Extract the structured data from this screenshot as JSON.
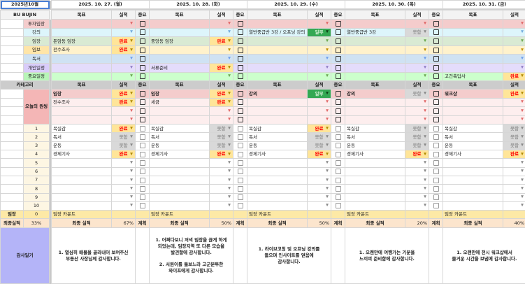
{
  "sheet": {
    "month_label": "2025년10월",
    "user_label": "BU BUJIN",
    "category_header": "카테고리",
    "onething_label": "오늘의 원씽",
    "imjang_label": "임장",
    "imjang_count": "0",
    "final_label": "최종실적",
    "final_total": "33%",
    "diary_label": "감사일기"
  },
  "headers": {
    "goal": "목표",
    "result": "실적",
    "important": "중요",
    "plan": "계획",
    "final": "최종 실적",
    "imjang_keyword": "임장 카운트"
  },
  "colors": {
    "done_bg": "#ffe599",
    "done_text": "#ff0000",
    "fail_bg": "#d9d9d9",
    "fail_text": "#9a9a9a",
    "partial_bg": "#34a853",
    "partial_text": "#d9f5d9",
    "diary_label_bg": "#b4b4f8"
  },
  "categories": [
    {
      "label": "투자임장",
      "bg": "#f4cccc",
      "label_bg": "#f4cccc",
      "arrow": "#e06666"
    },
    {
      "label": "강의",
      "bg": "#ddf5fb",
      "label_bg": "#ddf5fb",
      "arrow": "#6fa8dc"
    },
    {
      "label": "임장",
      "bg": "#d9ead3",
      "label_bg": "#d9ead3",
      "arrow": "#6aa84f"
    },
    {
      "label": "임보",
      "bg": "#fff2cc",
      "label_bg": "#ffe5a8",
      "arrow": "#bf9000"
    },
    {
      "label": "독서",
      "bg": "#cfe2f3",
      "label_bg": "#cfe2f3",
      "arrow": "#6d9eeb"
    },
    {
      "label": "개인일정",
      "bg": "#e4dcfb",
      "label_bg": "#d9ccfa",
      "arrow": "#8e7cc3"
    },
    {
      "label": "중요일정",
      "bg": "#ccffcc",
      "label_bg": "#b8f5b8",
      "arrow": "#6aa84f"
    }
  ],
  "routine_numbers": [
    "1",
    "2",
    "3",
    "4",
    "5",
    "6",
    "7",
    "8",
    "9",
    "10"
  ],
  "days": [
    {
      "date": "2025. 10. 27. (월)",
      "schedule": [
        {
          "goal": "",
          "result": ""
        },
        {
          "goal": "",
          "result": ""
        },
        {
          "goal": "돈암동 임장",
          "result": "완료"
        },
        {
          "goal": "전수조사",
          "result": "완료"
        },
        {
          "goal": "",
          "result": ""
        },
        {
          "goal": "",
          "result": ""
        },
        {
          "goal": "",
          "result": ""
        }
      ],
      "onething": [
        {
          "goal": "임장",
          "result": "완료"
        },
        {
          "goal": "전수조사",
          "result": "완료"
        },
        {
          "goal": "",
          "result": ""
        },
        {
          "goal": "",
          "result": ""
        }
      ],
      "routines": [
        {
          "goal": "목실감",
          "result": "완료"
        },
        {
          "goal": "독서",
          "result": "못함"
        },
        {
          "goal": "운동",
          "result": "못함"
        },
        {
          "goal": "경제기사",
          "result": "완료"
        },
        {
          "goal": "",
          "result": ""
        },
        {
          "goal": "",
          "result": ""
        },
        {
          "goal": "",
          "result": ""
        },
        {
          "goal": "",
          "result": ""
        },
        {
          "goal": "",
          "result": ""
        },
        {
          "goal": "",
          "result": ""
        }
      ],
      "final_pct": "67%",
      "diary": "1. 열심히 매물을 골라내어 보여주신\n부동산 사장님께 감사합니다."
    },
    {
      "date": "2025. 10. 28. (화)",
      "schedule": [
        {
          "goal": "",
          "result": ""
        },
        {
          "goal": "",
          "result": ""
        },
        {
          "goal": "중앙동 임장",
          "result": "완료"
        },
        {
          "goal": "",
          "result": ""
        },
        {
          "goal": "",
          "result": ""
        },
        {
          "goal": "서류준비",
          "result": "완료"
        },
        {
          "goal": "",
          "result": ""
        }
      ],
      "onething": [
        {
          "goal": "임장",
          "result": "완료"
        },
        {
          "goal": "세금",
          "result": "완료"
        },
        {
          "goal": "",
          "result": ""
        },
        {
          "goal": "",
          "result": ""
        }
      ],
      "routines": [
        {
          "goal": "목실감",
          "result": "못함"
        },
        {
          "goal": "독서",
          "result": "못함"
        },
        {
          "goal": "운동",
          "result": "못함"
        },
        {
          "goal": "경제기사",
          "result": "완료"
        },
        {
          "goal": "",
          "result": ""
        },
        {
          "goal": "",
          "result": ""
        },
        {
          "goal": "",
          "result": ""
        },
        {
          "goal": "",
          "result": ""
        },
        {
          "goal": "",
          "result": ""
        },
        {
          "goal": "",
          "result": ""
        }
      ],
      "final_pct": "50%",
      "diary": "1. 어쩌다보니 저녁 임장을 끊게 하게\n되었는데, 임장지역 또 다른 모습을\n발견함에 감사합니다.\n\n2. 서원이를 돌보느라 고군분투한\n와이프에게 감사합니다."
    },
    {
      "date": "2025. 10. 29. (수)",
      "schedule": [
        {
          "goal": "",
          "result": ""
        },
        {
          "goal": "열반중급반 3강 / 오프닝 강의",
          "result": "일부"
        },
        {
          "goal": "",
          "result": ""
        },
        {
          "goal": "",
          "result": ""
        },
        {
          "goal": "",
          "result": ""
        },
        {
          "goal": "",
          "result": ""
        },
        {
          "goal": "",
          "result": ""
        }
      ],
      "onething": [
        {
          "goal": "강의",
          "result": "일부"
        },
        {
          "goal": "",
          "result": ""
        },
        {
          "goal": "",
          "result": ""
        },
        {
          "goal": "",
          "result": ""
        }
      ],
      "routines": [
        {
          "goal": "목실감",
          "result": "완료"
        },
        {
          "goal": "독서",
          "result": "못함"
        },
        {
          "goal": "운동",
          "result": "못함"
        },
        {
          "goal": "경제기사",
          "result": "완료"
        },
        {
          "goal": "",
          "result": ""
        },
        {
          "goal": "",
          "result": ""
        },
        {
          "goal": "",
          "result": ""
        },
        {
          "goal": "",
          "result": ""
        },
        {
          "goal": "",
          "result": ""
        },
        {
          "goal": "",
          "result": ""
        }
      ],
      "final_pct": "50%",
      "diary": "1. 라이브코칭 및 오프닝 강의를\n들으며 인사이트를 얻음에\n감사합니다."
    },
    {
      "date": "2025. 10. 30. (목)",
      "schedule": [
        {
          "goal": "",
          "result": ""
        },
        {
          "goal": "열반중급반 3강",
          "result": "못함"
        },
        {
          "goal": "",
          "result": ""
        },
        {
          "goal": "",
          "result": ""
        },
        {
          "goal": "",
          "result": ""
        },
        {
          "goal": "",
          "result": ""
        },
        {
          "goal": "",
          "result": ""
        }
      ],
      "onething": [
        {
          "goal": "강의",
          "result": "못함"
        },
        {
          "goal": "",
          "result": ""
        },
        {
          "goal": "",
          "result": ""
        },
        {
          "goal": "",
          "result": ""
        }
      ],
      "routines": [
        {
          "goal": "목실감",
          "result": "못함"
        },
        {
          "goal": "독서",
          "result": "못함"
        },
        {
          "goal": "운동",
          "result": "못함"
        },
        {
          "goal": "경제기사",
          "result": "완료"
        },
        {
          "goal": "",
          "result": ""
        },
        {
          "goal": "",
          "result": ""
        },
        {
          "goal": "",
          "result": ""
        },
        {
          "goal": "",
          "result": ""
        },
        {
          "goal": "",
          "result": ""
        },
        {
          "goal": "",
          "result": ""
        }
      ],
      "final_pct": "20%",
      "diary": "1. 오랜만에 여행가는 기분을\n느끼며 준비함에 감사합니다."
    },
    {
      "date": "2025. 10. 31. (금)",
      "schedule": [
        {
          "goal": "",
          "result": ""
        },
        {
          "goal": "",
          "result": ""
        },
        {
          "goal": "",
          "result": ""
        },
        {
          "goal": "",
          "result": ""
        },
        {
          "goal": "",
          "result": ""
        },
        {
          "goal": "",
          "result": ""
        },
        {
          "goal": "고건축답사",
          "result": "완료"
        }
      ],
      "onething": [
        {
          "goal": "워크샵",
          "result": "완료"
        },
        {
          "goal": "",
          "result": ""
        },
        {
          "goal": "",
          "result": ""
        },
        {
          "goal": "",
          "result": ""
        }
      ],
      "routines": [
        {
          "goal": "목실감",
          "result": "못함"
        },
        {
          "goal": "독서",
          "result": "못함"
        },
        {
          "goal": "운동",
          "result": "못함"
        },
        {
          "goal": "경제기사",
          "result": "완료"
        },
        {
          "goal": "",
          "result": ""
        },
        {
          "goal": "",
          "result": ""
        },
        {
          "goal": "",
          "result": ""
        },
        {
          "goal": "",
          "result": ""
        },
        {
          "goal": "",
          "result": ""
        },
        {
          "goal": "",
          "result": ""
        }
      ],
      "final_pct": "40%",
      "diary": "1. 오랜만에 전시 워크샵에서\n즐거운 시간을 보냄에 감사합니다."
    }
  ]
}
